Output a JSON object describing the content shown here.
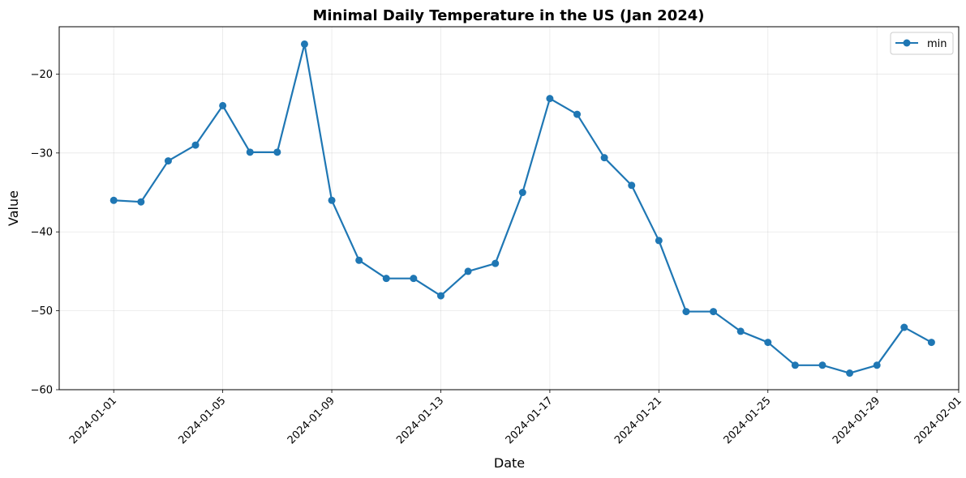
{
  "chart_data": {
    "type": "line",
    "title": "Minimal Daily Temperature in the US (Jan 2024)",
    "xlabel": "Date",
    "ylabel": "Value",
    "ylim": [
      -60,
      -14
    ],
    "xlim": [
      "2023-12-30",
      "2024-02-01"
    ],
    "yticks": [
      -60,
      -50,
      -40,
      -30,
      -20
    ],
    "xticks": [
      "2024-01-01",
      "2024-01-05",
      "2024-01-09",
      "2024-01-13",
      "2024-01-17",
      "2024-01-21",
      "2024-01-25",
      "2024-01-29",
      "2024-02-01"
    ],
    "grid": true,
    "legend_position": "top-right",
    "series": [
      {
        "name": "min",
        "color": "#1f77b4",
        "x": [
          "2024-01-01",
          "2024-01-02",
          "2024-01-03",
          "2024-01-04",
          "2024-01-05",
          "2024-01-06",
          "2024-01-07",
          "2024-01-08",
          "2024-01-09",
          "2024-01-10",
          "2024-01-11",
          "2024-01-12",
          "2024-01-13",
          "2024-01-14",
          "2024-01-15",
          "2024-01-16",
          "2024-01-17",
          "2024-01-18",
          "2024-01-19",
          "2024-01-20",
          "2024-01-21",
          "2024-01-22",
          "2024-01-23",
          "2024-01-24",
          "2024-01-25",
          "2024-01-26",
          "2024-01-27",
          "2024-01-28",
          "2024-01-29",
          "2024-01-30",
          "2024-01-31"
        ],
        "values": [
          -36,
          -36.2,
          -31,
          -29,
          -24,
          -29.9,
          -29.9,
          -16.2,
          -36,
          -43.6,
          -45.9,
          -45.9,
          -48.1,
          -45,
          -44,
          -35,
          -23.1,
          -25.1,
          -30.6,
          -34.1,
          -41.1,
          -50.1,
          -50.1,
          -52.6,
          -54,
          -56.9,
          -56.9,
          -57.9,
          -56.9,
          -52.1,
          -54
        ]
      }
    ]
  }
}
